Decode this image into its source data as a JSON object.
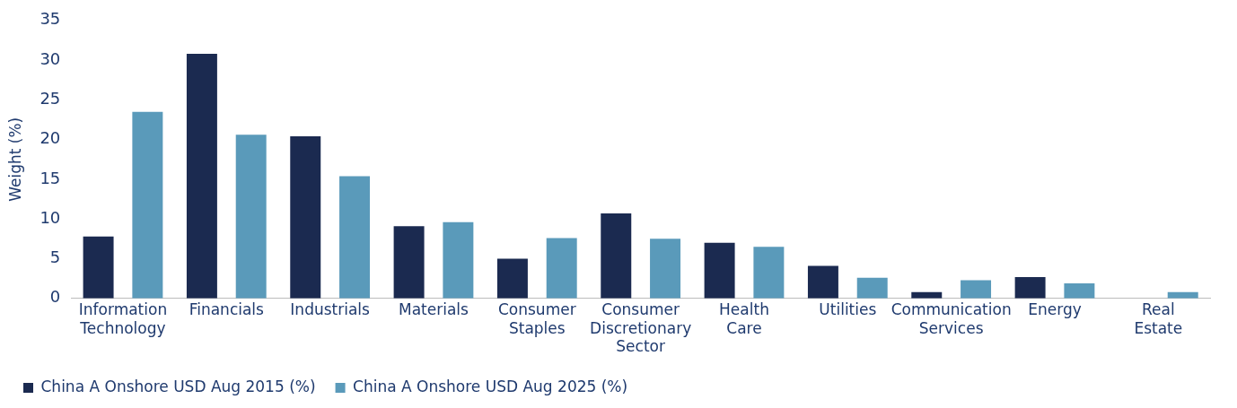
{
  "chart_data": {
    "type": "bar",
    "ylabel": "Weight (%)",
    "categories": [
      "Information Technology",
      "Financials",
      "Industrials",
      "Materials",
      "Consumer Staples",
      "Consumer Discretionary Sector",
      "Health Care",
      "Utilities",
      "Communication Services",
      "Energy",
      "Real Estate"
    ],
    "series": [
      {
        "name": "China A Onshore USD Aug 2015 (%)",
        "color": "#1b2a50",
        "values": [
          7.8,
          30.8,
          20.4,
          9.1,
          5.0,
          10.7,
          7.0,
          4.1,
          0.8,
          2.7,
          0
        ]
      },
      {
        "name": "China A Onshore USD Aug 2025 (%)",
        "color": "#5a9aba",
        "values": [
          23.5,
          20.6,
          15.4,
          9.6,
          7.6,
          7.5,
          6.5,
          2.6,
          2.3,
          1.9,
          0.8
        ]
      }
    ],
    "ylim": [
      0,
      35
    ],
    "yticks": [
      0,
      5,
      10,
      15,
      20,
      25,
      30,
      35
    ],
    "grid": false,
    "legend": "bottom left"
  }
}
